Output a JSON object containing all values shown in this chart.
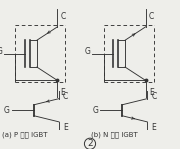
{
  "title": "2",
  "label_a": "(a) P 沟道 IGBT",
  "label_b": "(b) N 沟道 IGBT",
  "bg_color": "#eeeeea",
  "line_color": "#333333",
  "fontsize_label": 5.0,
  "fontsize_terminal": 5.5
}
